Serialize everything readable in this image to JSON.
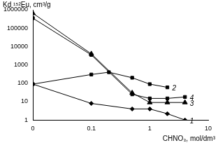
{
  "chart_data": {
    "type": "line",
    "x_label": "CHNO₃, mol/dm³",
    "y_label": "Kd ¹⁵²Eu, cm³/g",
    "log": true,
    "grid": false,
    "xlim": [
      0.01,
      10
    ],
    "xticks": [
      {
        "value": 0.01,
        "label": "0"
      },
      0.1,
      1,
      10
    ],
    "ylim": [
      1,
      1000000
    ],
    "yticks": [
      1,
      10,
      100,
      1000,
      10000,
      100000,
      1000000
    ],
    "series": [
      {
        "name": "1",
        "color": "#000000",
        "marker": "diamond",
        "line_style": "solid",
        "x": [
          0.01,
          0.1,
          0.5,
          1,
          2,
          4
        ],
        "values": [
          90,
          8,
          4,
          4,
          2.2,
          1
        ]
      },
      {
        "name": "2",
        "color": "#000000",
        "marker": "square",
        "line_style": "solid",
        "x": [
          0.01,
          0.1,
          0.2,
          0.5,
          1,
          2
        ],
        "values": [
          90,
          300,
          400,
          200,
          90,
          60
        ]
      },
      {
        "name": "3",
        "color": "#000000",
        "marker": "triangle",
        "line_style": "solid",
        "x": [
          0.01,
          0.1,
          0.5,
          1,
          2,
          4
        ],
        "values": [
          650000,
          4000,
          30,
          9,
          9,
          9
        ]
      },
      {
        "name": "4",
        "color": "#000000",
        "marker": "square",
        "line_style": "solid",
        "x": [
          0.01,
          0.1,
          0.5,
          1,
          2,
          4
        ],
        "values": [
          350000,
          3500,
          25,
          15,
          15,
          18
        ]
      }
    ]
  }
}
